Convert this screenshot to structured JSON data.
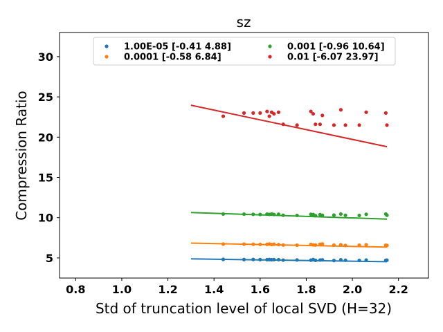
{
  "chart_data": {
    "type": "scatter",
    "title": "sz",
    "xlabel": "Std of truncation level of local SVD (H=32)",
    "ylabel": "Compression Ratio",
    "xlim": [
      0.73,
      2.33
    ],
    "ylim": [
      2.5,
      33.0
    ],
    "xticks": [
      0.8,
      1.0,
      1.2,
      1.4,
      1.6,
      1.8,
      2.0,
      2.2
    ],
    "xtick_labels": [
      "0.8",
      "1.0",
      "1.2",
      "1.4",
      "1.6",
      "1.8",
      "2.0",
      "2.2"
    ],
    "yticks": [
      5,
      10,
      15,
      20,
      25,
      30
    ],
    "ytick_labels": [
      "5",
      "10",
      "15",
      "20",
      "25",
      "30"
    ],
    "legend_position": "upper-center",
    "fit_x_range": [
      1.3,
      2.15
    ],
    "x": [
      1.44,
      1.53,
      1.57,
      1.6,
      1.63,
      1.64,
      1.65,
      1.66,
      1.68,
      1.7,
      1.76,
      1.82,
      1.83,
      1.84,
      1.86,
      1.87,
      1.92,
      1.95,
      1.97,
      2.03,
      2.06,
      2.145,
      2.15
    ],
    "series": [
      {
        "name": "1.00E-05 [-0.41  4.88]",
        "color": "#1f77b4",
        "fit": [
          -0.41,
          4.88
        ],
        "values": [
          4.82,
          4.8,
          4.81,
          4.79,
          4.78,
          4.8,
          4.77,
          4.79,
          4.78,
          4.73,
          4.75,
          4.72,
          4.8,
          4.7,
          4.74,
          4.76,
          4.68,
          4.77,
          4.71,
          4.69,
          4.74,
          4.7,
          4.72
        ]
      },
      {
        "name": "0.0001 [-0.58  6.84]",
        "color": "#ff7f0e",
        "fit": [
          -0.58,
          6.84
        ],
        "values": [
          6.72,
          6.71,
          6.7,
          6.68,
          6.69,
          6.72,
          6.66,
          6.7,
          6.65,
          6.6,
          6.58,
          6.68,
          6.62,
          6.6,
          6.7,
          6.73,
          6.59,
          6.64,
          6.55,
          6.58,
          6.64,
          6.58,
          6.55
        ]
      },
      {
        "name": "0.001 [-0.96 10.64]",
        "color": "#2ca02c",
        "fit": [
          -0.96,
          10.64
        ],
        "values": [
          10.45,
          10.44,
          10.42,
          10.4,
          10.44,
          10.41,
          10.45,
          10.4,
          10.43,
          10.3,
          10.28,
          10.42,
          10.4,
          10.25,
          10.38,
          10.3,
          10.32,
          10.45,
          10.3,
          10.28,
          10.42,
          10.45,
          10.3
        ]
      },
      {
        "name": "0.01 [-6.07 23.97]",
        "color": "#d62728",
        "fit": [
          -6.07,
          23.97
        ],
        "values": [
          22.6,
          23.0,
          23.0,
          23.0,
          23.2,
          22.6,
          23.1,
          22.9,
          23.1,
          21.6,
          21.5,
          23.2,
          22.9,
          21.6,
          21.6,
          22.7,
          21.5,
          23.4,
          21.5,
          21.5,
          23.1,
          23.0,
          21.5
        ]
      }
    ]
  }
}
